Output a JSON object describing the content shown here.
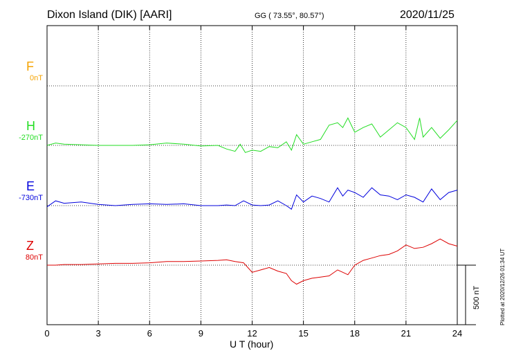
{
  "header": {
    "title": "Dixon Island (DIK)  [AARI]",
    "coords": "GG ( 73.55°,  80.57°)",
    "date": "2020/11/25"
  },
  "side_note": "Plotted at 2020/12/26 01:34 UT",
  "scale_label": "500 nT",
  "chart_data": {
    "type": "line",
    "title": "Dixon Island (DIK)  [AARI]",
    "xlabel": "U T (hour)",
    "ylabel": "",
    "xlim": [
      0,
      24
    ],
    "x_ticks": [
      "0",
      "3",
      "6",
      "9",
      "12",
      "15",
      "18",
      "21",
      "24"
    ],
    "grid": true,
    "scale_bar_nT": 500,
    "series": [
      {
        "name": "F",
        "baseline_label": "0nT",
        "color": "#f5a300",
        "values": []
      },
      {
        "name": "H",
        "baseline_label": "-270nT",
        "color": "#22dd22",
        "x": [
          0,
          0.5,
          1,
          2,
          3,
          4,
          5,
          6,
          7,
          8,
          9,
          10,
          10.5,
          11,
          11.3,
          11.6,
          12,
          12.5,
          13,
          13.5,
          14,
          14.3,
          14.6,
          15,
          15.5,
          16,
          16.5,
          17,
          17.3,
          17.6,
          18,
          18.5,
          19,
          19.5,
          20,
          20.5,
          21,
          21.5,
          21.8,
          22,
          22.5,
          23,
          23.5,
          24
        ],
        "values": [
          -270,
          -250,
          -260,
          -265,
          -270,
          -270,
          -270,
          -265,
          -250,
          -260,
          -275,
          -270,
          -300,
          -320,
          -260,
          -330,
          -310,
          -320,
          -280,
          -290,
          -240,
          -310,
          -180,
          -260,
          -240,
          -220,
          -100,
          -80,
          -120,
          -40,
          -160,
          -120,
          -90,
          -200,
          -140,
          -80,
          -120,
          -220,
          -40,
          -200,
          -120,
          -210,
          -140,
          -60
        ]
      },
      {
        "name": "E",
        "baseline_label": "-730nT",
        "color": "#0000dd",
        "x": [
          0,
          0.5,
          1,
          2,
          3,
          4,
          5,
          6,
          7,
          8,
          9,
          10,
          10.5,
          11,
          11.5,
          12,
          12.5,
          13,
          13.5,
          14,
          14.3,
          14.6,
          15,
          15.5,
          16,
          16.5,
          17,
          17.3,
          17.6,
          18,
          18.5,
          19,
          19.5,
          20,
          20.5,
          21,
          21.5,
          22,
          22.5,
          23,
          23.5,
          24
        ],
        "values": [
          -740,
          -690,
          -710,
          -700,
          -720,
          -730,
          -720,
          -715,
          -720,
          -715,
          -730,
          -730,
          -725,
          -730,
          -690,
          -725,
          -730,
          -725,
          -690,
          -730,
          -760,
          -640,
          -700,
          -650,
          -670,
          -700,
          -580,
          -650,
          -600,
          -620,
          -660,
          -580,
          -640,
          -650,
          -680,
          -640,
          -660,
          -700,
          -590,
          -680,
          -620,
          -600
        ]
      },
      {
        "name": "Z",
        "baseline_label": "80nT",
        "color": "#dd0000",
        "x": [
          0,
          0.5,
          1,
          2,
          3,
          4,
          5,
          6,
          7,
          8,
          9,
          10,
          10.5,
          11,
          11.5,
          12,
          12.5,
          13,
          13.5,
          14,
          14.3,
          14.6,
          15,
          15.5,
          16,
          16.5,
          17,
          17.3,
          17.6,
          18,
          18.5,
          19,
          19.5,
          20,
          20.5,
          21,
          21.5,
          22,
          22.5,
          23,
          23.5,
          24
        ],
        "values": [
          80,
          80,
          85,
          85,
          90,
          95,
          95,
          100,
          110,
          110,
          115,
          120,
          125,
          110,
          100,
          20,
          40,
          60,
          30,
          10,
          -50,
          -80,
          -50,
          -30,
          -20,
          -10,
          40,
          20,
          0,
          80,
          120,
          140,
          160,
          170,
          200,
          250,
          220,
          230,
          260,
          300,
          260,
          240
        ]
      }
    ]
  }
}
